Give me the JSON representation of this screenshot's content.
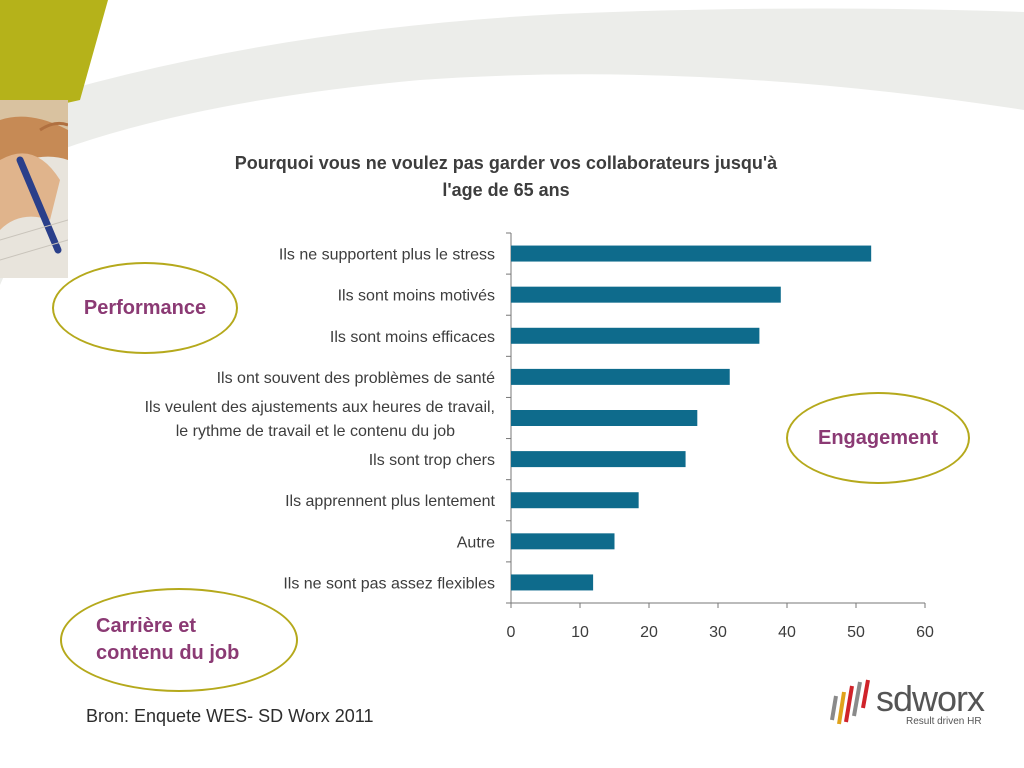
{
  "colors": {
    "bar": "#0e6b8c",
    "accent_green": "#b5b21a",
    "bubble_text": "#8b3a74",
    "bubble_border": "#b5a91c"
  },
  "decoration": {
    "photo_icon": "hand-writing-photo"
  },
  "chart_data": {
    "type": "bar",
    "orientation": "horizontal",
    "title_lines": [
      "Pourquoi vous ne voulez pas garder vos collaborateurs jusqu'à",
      "l'age de 65 ans"
    ],
    "categories": [
      "Ils ne supportent plus le stress",
      "Ils sont moins motivés",
      "Ils sont moins efficaces",
      "Ils ont souvent des problèmes de santé",
      "Ils veulent des ajustements aux heures de travail,\nle rythme de travail et le contenu du job",
      "Ils sont trop chers",
      "Ils apprennent plus lentement",
      "Autre",
      "Ils ne sont pas assez flexibles"
    ],
    "values": [
      52.2,
      39.1,
      36.0,
      31.7,
      27.0,
      25.3,
      18.5,
      15.0,
      11.9
    ],
    "xlim": [
      0,
      60
    ],
    "xticks": [
      "0",
      "10",
      "20",
      "30",
      "40",
      "50",
      "60"
    ],
    "grid": false,
    "xlabel": "",
    "ylabel": ""
  },
  "bubbles": {
    "performance": "Performance",
    "engagement": "Engagement",
    "carriere": "Carrière et\ncontenu du job"
  },
  "source": "Bron: Enquete WES- SD Worx 2011",
  "logo": {
    "brand": "sdworx",
    "tagline": "Result driven HR"
  }
}
